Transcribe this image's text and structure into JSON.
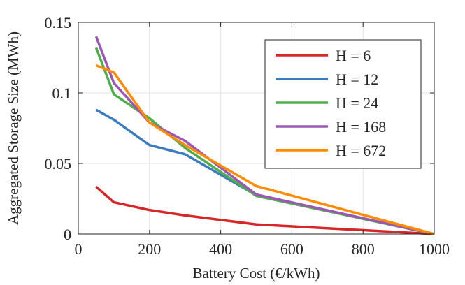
{
  "chart_data": {
    "type": "line",
    "xlabel": "Battery Cost (€/kWh)",
    "ylabel": "Aggregated Storage Size (MWh)",
    "xlim": [
      0,
      1000
    ],
    "ylim": [
      0,
      0.15
    ],
    "xticks": [
      0,
      200,
      400,
      600,
      800,
      1000
    ],
    "yticks": [
      0,
      0.05,
      0.1,
      0.15
    ],
    "xtick_labels": [
      "0",
      "200",
      "400",
      "600",
      "800",
      "1000"
    ],
    "ytick_labels": [
      "0",
      "0.05",
      "0.1",
      "0.15"
    ],
    "grid": true,
    "legend_placement": "top-right",
    "series": [
      {
        "name": "H = 6",
        "color": "#d62728",
        "x": [
          50,
          100,
          200,
          300,
          500,
          1000
        ],
        "y": [
          0.0335,
          0.0225,
          0.017,
          0.0132,
          0.0068,
          0.0
        ]
      },
      {
        "name": "H = 12",
        "color": "#3a7cbf",
        "x": [
          50,
          100,
          200,
          300,
          500,
          1000
        ],
        "y": [
          0.088,
          0.081,
          0.063,
          0.0565,
          0.0275,
          0.0
        ]
      },
      {
        "name": "H = 24",
        "color": "#4daf4a",
        "x": [
          50,
          100,
          200,
          300,
          500,
          1000
        ],
        "y": [
          0.132,
          0.099,
          0.082,
          0.061,
          0.027,
          0.0
        ]
      },
      {
        "name": "H = 168",
        "color": "#9c56b5",
        "x": [
          50,
          100,
          200,
          300,
          500,
          1000
        ],
        "y": [
          0.14,
          0.107,
          0.079,
          0.066,
          0.028,
          0.0
        ]
      },
      {
        "name": "H = 672",
        "color": "#ff8c00",
        "x": [
          50,
          100,
          200,
          300,
          500,
          1000
        ],
        "y": [
          0.1195,
          0.1145,
          0.079,
          0.063,
          0.034,
          0.0
        ]
      }
    ]
  }
}
